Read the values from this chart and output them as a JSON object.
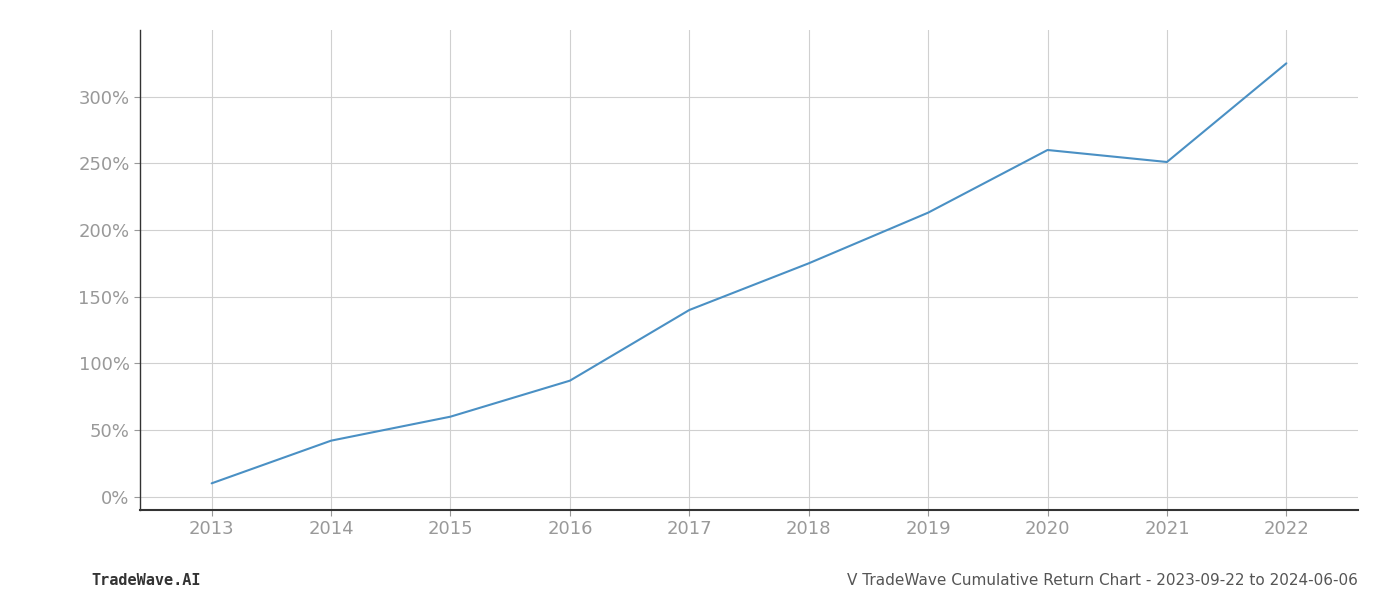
{
  "x_years": [
    2013,
    2014,
    2015,
    2016,
    2017,
    2018,
    2019,
    2020,
    2021,
    2022
  ],
  "y_values": [
    10,
    42,
    60,
    87,
    140,
    175,
    213,
    260,
    251,
    325
  ],
  "line_color": "#4a90c4",
  "line_width": 1.5,
  "background_color": "#ffffff",
  "grid_color": "#d0d0d0",
  "tick_color": "#999999",
  "ylabel_ticks": [
    0,
    50,
    100,
    150,
    200,
    250,
    300
  ],
  "ylabel_labels": [
    "0%",
    "50%",
    "100%",
    "150%",
    "200%",
    "250%",
    "300%"
  ],
  "xlim": [
    2012.4,
    2022.6
  ],
  "ylim": [
    -10,
    350
  ],
  "footer_left": "TradeWave.AI",
  "footer_right": "V TradeWave Cumulative Return Chart - 2023-09-22 to 2024-06-06",
  "footer_color": "#555555",
  "footer_fontsize": 11,
  "tick_fontsize": 13
}
